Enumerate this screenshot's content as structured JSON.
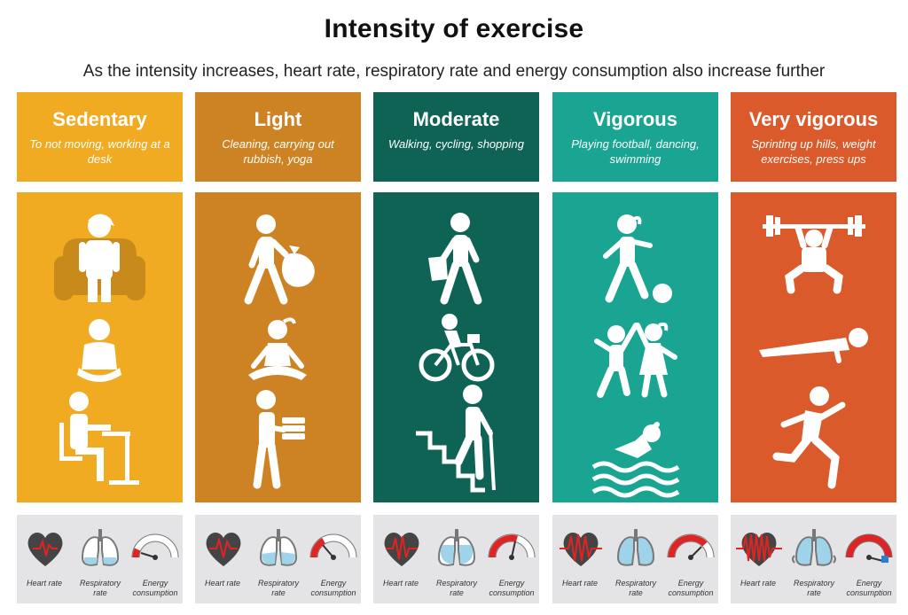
{
  "title": "Intensity of exercise",
  "subtitle": "As the intensity increases, heart rate, respiratory rate and energy consumption also increase further",
  "columns": [
    {
      "name": "Sedentary",
      "description": "To not moving, working at a desk",
      "color": "#f0ab23",
      "level": 1
    },
    {
      "name": "Light",
      "description": "Cleaning, carrying out rubbish, yoga",
      "color": "#cd8324",
      "level": 2
    },
    {
      "name": "Moderate",
      "description": "Walking, cycling, shopping",
      "color": "#0e6355",
      "level": 3
    },
    {
      "name": "Vigorous",
      "description": "Playing football, dancing, swimming",
      "color": "#19a592",
      "level": 4
    },
    {
      "name": "Very vigorous",
      "description": "Sprinting up hills, weight exercises, press ups",
      "color": "#da5a2b",
      "level": 5
    }
  ],
  "indicators": {
    "heart_rate": "Heart rate",
    "respiratory_rate": "Respiratory rate",
    "energy_consumption": "Energy consumption"
  },
  "icons": [
    [
      "person-on-armchair-icon",
      "seated-person-icon",
      "person-at-desk-icon"
    ],
    [
      "person-carrying-rubbish-bag-icon",
      "yoga-person-icon",
      "person-carrying-boxes-icon"
    ],
    [
      "walking-with-shopping-bag-icon",
      "cyclist-icon",
      "person-climbing-stairs-icon"
    ],
    [
      "football-player-icon",
      "dancing-couple-icon",
      "swimmer-icon"
    ],
    [
      "weightlifter-icon",
      "press-up-icon",
      "sprinter-icon"
    ]
  ]
}
